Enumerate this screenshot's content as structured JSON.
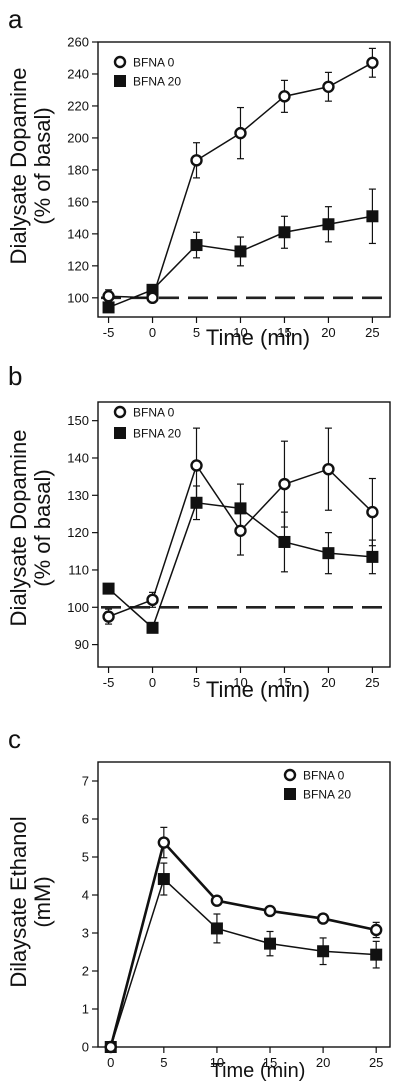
{
  "chart_data": [
    {
      "type": "line",
      "panel_label": "a",
      "x": [
        -5,
        0,
        5,
        10,
        15,
        20,
        25
      ],
      "xticks": [
        "-5",
        "0",
        "5",
        "10",
        "15",
        "20",
        "25"
      ],
      "xlim": [
        -6.2,
        27
      ],
      "yticks": [
        "100",
        "120",
        "140",
        "160",
        "180",
        "200",
        "220",
        "240",
        "260"
      ],
      "ylim": [
        88,
        260
      ],
      "ytick_values": [
        100,
        120,
        140,
        160,
        180,
        200,
        220,
        240,
        260
      ],
      "xlabel": "Time (min)",
      "ylabel": "Dialysate Dopamine",
      "ylabel2": "(% of basal)",
      "baseline": 100,
      "legend_position": "top-left",
      "series": [
        {
          "name": "BFNA 0",
          "marker": "open-circle",
          "values": [
            101,
            100,
            186,
            203,
            226,
            232,
            247
          ],
          "errors": [
            4,
            3,
            11,
            16,
            10,
            9,
            9
          ]
        },
        {
          "name": "BFNA 20",
          "marker": "filled-square",
          "values": [
            94,
            105,
            133,
            129,
            141,
            146,
            151
          ],
          "errors": [
            3,
            3,
            8,
            9,
            10,
            11,
            17
          ]
        }
      ]
    },
    {
      "type": "line",
      "panel_label": "b",
      "x": [
        -5,
        0,
        5,
        10,
        15,
        20,
        25
      ],
      "xticks": [
        "-5",
        "0",
        "5",
        "10",
        "15",
        "20",
        "25"
      ],
      "xlim": [
        -6.2,
        27
      ],
      "yticks": [
        "90",
        "100",
        "110",
        "120",
        "130",
        "140",
        "150"
      ],
      "ylim": [
        84,
        155
      ],
      "ytick_values": [
        90,
        100,
        110,
        120,
        130,
        140,
        150
      ],
      "xlabel": "Time (min)",
      "ylabel": "Dialysate Dopamine",
      "ylabel2": "(% of basal)",
      "baseline": 100,
      "legend_position": "top-left",
      "series": [
        {
          "name": "BFNA 0",
          "marker": "open-circle",
          "values": [
            97.5,
            102,
            138,
            120.5,
            133,
            137,
            125.5
          ],
          "errors": [
            2,
            2,
            10,
            6.5,
            11.5,
            11,
            9
          ]
        },
        {
          "name": "BFNA 20",
          "marker": "filled-square",
          "values": [
            105,
            94.5,
            128,
            126.5,
            117.5,
            114.5,
            113.5
          ],
          "errors": [
            1,
            1,
            4.5,
            6.5,
            8,
            5.5,
            4.5
          ]
        }
      ]
    },
    {
      "type": "line",
      "panel_label": "c",
      "x": [
        0,
        5,
        10,
        15,
        20,
        25
      ],
      "xticks": [
        "0",
        "5",
        "10",
        "15",
        "20",
        "25"
      ],
      "xlim": [
        -1.2,
        26.3
      ],
      "yticks": [
        "0",
        "1",
        "2",
        "3",
        "4",
        "5",
        "6",
        "7"
      ],
      "ylim": [
        0,
        7.5
      ],
      "ytick_values": [
        0,
        1,
        2,
        3,
        4,
        5,
        6,
        7
      ],
      "xlabel": "Time (min)",
      "ylabel": "Dilaysate Ethanol",
      "ylabel2": "(mM)",
      "legend_position": "top-right",
      "series": [
        {
          "name": "BFNA 0",
          "marker": "open-circle",
          "values": [
            0,
            5.38,
            3.85,
            3.58,
            3.38,
            3.08
          ],
          "errors": [
            0,
            0.4,
            0.12,
            0.1,
            0.12,
            0.2
          ]
        },
        {
          "name": "BFNA 20",
          "marker": "filled-square",
          "values": [
            0,
            4.42,
            3.12,
            2.72,
            2.52,
            2.43
          ],
          "errors": [
            0,
            0.42,
            0.38,
            0.32,
            0.35,
            0.35
          ]
        }
      ]
    }
  ]
}
